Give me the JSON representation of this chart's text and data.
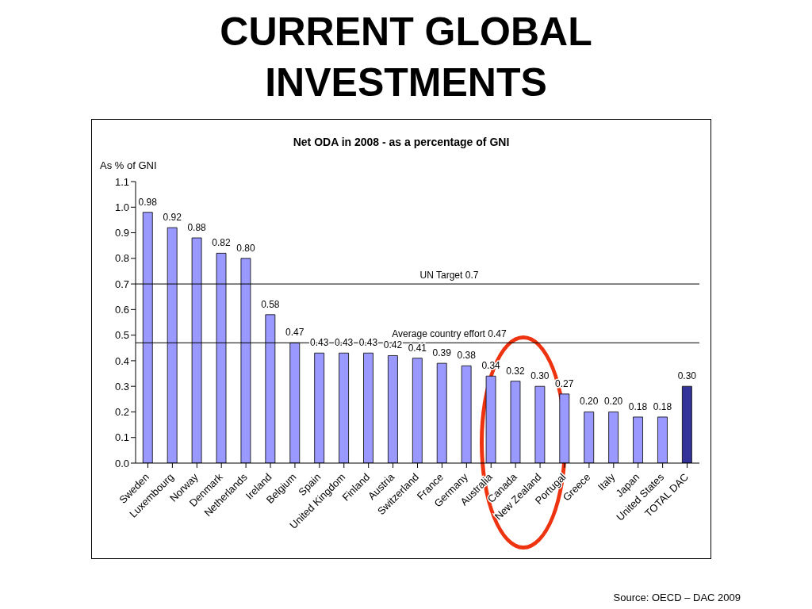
{
  "chart_data": {
    "type": "bar",
    "title": "CURRENT GLOBAL INVESTMENTS",
    "subtitle": "Net ODA  in 2008  - as a percentage  of GNI",
    "ylabel": "As % of GNI",
    "categories": [
      "Sweden",
      "Luxembourg",
      "Norway",
      "Denmark",
      "Netherlands",
      "Ireland",
      "Belgium",
      "Spain",
      "United Kingdom",
      "Finland",
      "Austria",
      "Switzerland",
      "France",
      "Germany",
      "Australia",
      "Canada",
      "New Zealand",
      "Portugal",
      "Greece",
      "Italy",
      "Japan",
      "United States",
      "TOTAL DAC"
    ],
    "values": [
      0.98,
      0.92,
      0.88,
      0.82,
      0.8,
      0.58,
      0.47,
      0.43,
      0.43,
      0.43,
      0.42,
      0.41,
      0.39,
      0.38,
      0.34,
      0.32,
      0.3,
      0.27,
      0.2,
      0.2,
      0.18,
      0.18,
      0.3
    ],
    "value_labels": [
      "0.98",
      "0.92",
      "0.88",
      "0.82",
      "0.80",
      "0.58",
      "0.47",
      "0.43",
      "0.43",
      "0.43",
      "0.42",
      "0.41",
      "0.39",
      "0.38",
      "0.34",
      "0.32",
      "0.30",
      "0.27",
      "0.20",
      "0.20",
      "0.18",
      "0.18",
      "0.30"
    ],
    "colors": [
      "#9999ff",
      "#9999ff",
      "#9999ff",
      "#9999ff",
      "#9999ff",
      "#9999ff",
      "#9999ff",
      "#9999ff",
      "#9999ff",
      "#9999ff",
      "#9999ff",
      "#9999ff",
      "#9999ff",
      "#9999ff",
      "#9999ff",
      "#9999ff",
      "#9999ff",
      "#9999ff",
      "#9999ff",
      "#9999ff",
      "#9999ff",
      "#9999ff",
      "#333399"
    ],
    "ylim": [
      0,
      1.1
    ],
    "yticks": [
      {
        "value": 0,
        "label": "0.0"
      },
      0.1,
      0.2,
      0.3,
      0.4,
      0.5,
      0.6,
      0.7,
      0.8,
      0.9,
      {
        "value": 1,
        "label": "1.0"
      },
      1.1
    ],
    "ref_lines": [
      {
        "axis": "y",
        "value": 0.7,
        "label": "UN Target 0.7",
        "color": "#000000"
      },
      {
        "axis": "y",
        "value": 0.47,
        "label": "Average country effort 0.47",
        "color": "#000000"
      }
    ],
    "grid": false,
    "legend": false,
    "annotations": [
      "Source: OECD – DAC 2009"
    ]
  }
}
